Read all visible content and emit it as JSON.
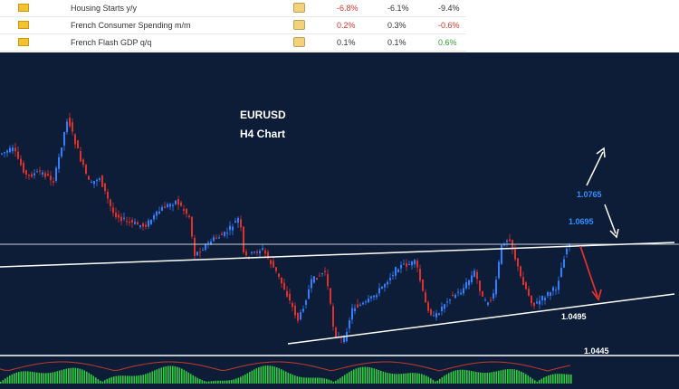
{
  "calendar": {
    "rows": [
      {
        "event": "Housing Starts y/y",
        "actual": "-6.8%",
        "forecast": "-6.1%",
        "previous": "-9.4%"
      },
      {
        "event": "French Consumer Spending m/m",
        "actual": "0.2%",
        "forecast": "0.3%",
        "previous": "-0.6%"
      },
      {
        "event": "French Flash GDP q/q",
        "actual": "0.1%",
        "forecast": "0.1%",
        "previous": "0.6%"
      }
    ]
  },
  "chart": {
    "symbol": "EURUSD",
    "timeframe": "H4 Chart",
    "levels": [
      "1.0765",
      "1.0695",
      "1.0495",
      "1.0445"
    ]
  }
}
